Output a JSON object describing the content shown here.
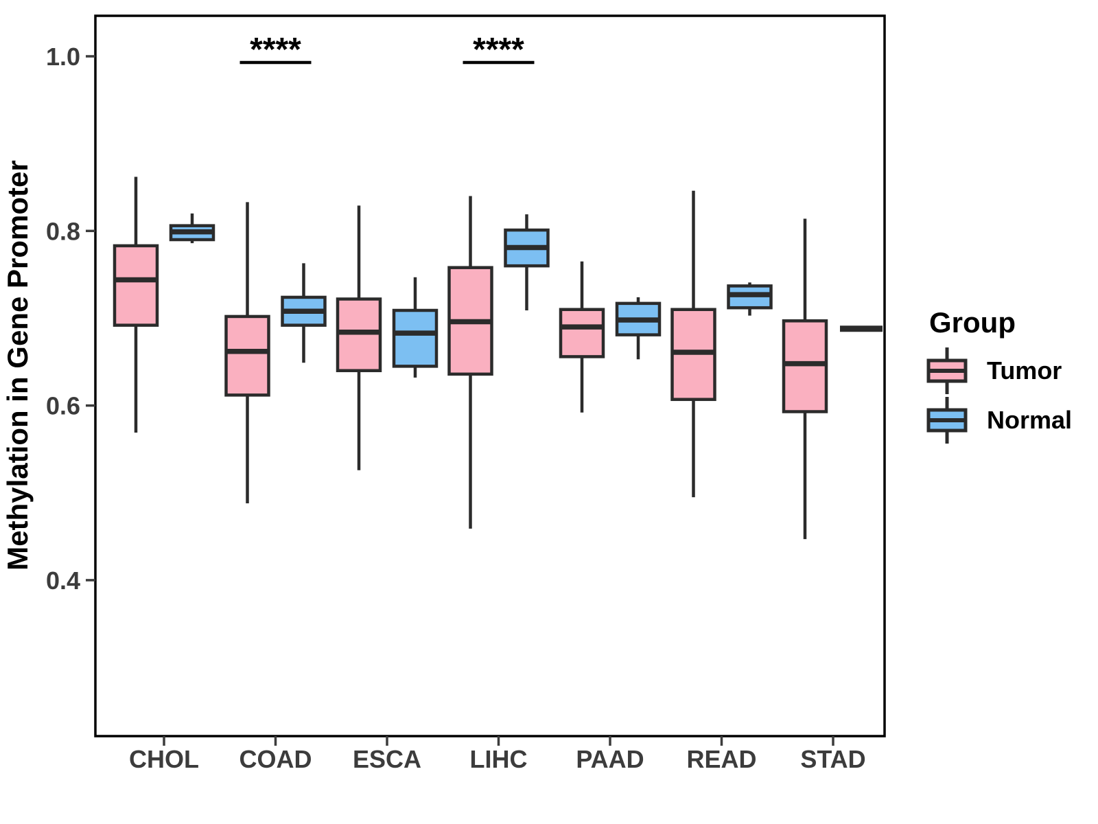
{
  "chart_data": {
    "type": "boxplot",
    "title": "",
    "xlabel": "",
    "ylabel": "Methylation in Gene Promoter",
    "legend_title": "Group",
    "legend_position": "right",
    "grid": false,
    "background": "#ffffff",
    "ylim": [
      0.24,
      1.05
    ],
    "y_ticks": [
      {
        "value": 1.0,
        "label": "1.0"
      },
      {
        "value": 0.8,
        "label": "0.8"
      },
      {
        "value": 0.6,
        "label": "0.6"
      },
      {
        "value": 0.4,
        "label": "0.4"
      }
    ],
    "categories": [
      "CHOL",
      "COAD",
      "ESCA",
      "LIHC",
      "PAAD",
      "READ",
      "STAD"
    ],
    "groups": [
      {
        "name": "Tumor",
        "color": "#FAB0C0"
      },
      {
        "name": "Normal",
        "color": "#7CBFF2"
      }
    ],
    "boxes": [
      {
        "category": "CHOL",
        "group": "Tumor",
        "whisker_low": 0.569,
        "q1": 0.692,
        "median": 0.744,
        "q3": 0.783,
        "whisker_high": 0.862
      },
      {
        "category": "CHOL",
        "group": "Normal",
        "whisker_low": 0.786,
        "q1": 0.79,
        "median": 0.799,
        "q3": 0.806,
        "whisker_high": 0.82
      },
      {
        "category": "COAD",
        "group": "Tumor",
        "whisker_low": 0.488,
        "q1": 0.612,
        "median": 0.662,
        "q3": 0.702,
        "whisker_high": 0.833
      },
      {
        "category": "COAD",
        "group": "Normal",
        "whisker_low": 0.649,
        "q1": 0.692,
        "median": 0.708,
        "q3": 0.724,
        "whisker_high": 0.763
      },
      {
        "category": "ESCA",
        "group": "Tumor",
        "whisker_low": 0.526,
        "q1": 0.64,
        "median": 0.684,
        "q3": 0.722,
        "whisker_high": 0.829
      },
      {
        "category": "ESCA",
        "group": "Normal",
        "whisker_low": 0.632,
        "q1": 0.645,
        "median": 0.683,
        "q3": 0.709,
        "whisker_high": 0.747
      },
      {
        "category": "LIHC",
        "group": "Tumor",
        "whisker_low": 0.459,
        "q1": 0.636,
        "median": 0.696,
        "q3": 0.758,
        "whisker_high": 0.84
      },
      {
        "category": "LIHC",
        "group": "Normal",
        "whisker_low": 0.709,
        "q1": 0.76,
        "median": 0.781,
        "q3": 0.801,
        "whisker_high": 0.819
      },
      {
        "category": "PAAD",
        "group": "Tumor",
        "whisker_low": 0.592,
        "q1": 0.656,
        "median": 0.69,
        "q3": 0.71,
        "whisker_high": 0.765
      },
      {
        "category": "PAAD",
        "group": "Normal",
        "whisker_low": 0.653,
        "q1": 0.681,
        "median": 0.698,
        "q3": 0.717,
        "whisker_high": 0.724
      },
      {
        "category": "READ",
        "group": "Tumor",
        "whisker_low": 0.495,
        "q1": 0.607,
        "median": 0.661,
        "q3": 0.71,
        "whisker_high": 0.846
      },
      {
        "category": "READ",
        "group": "Normal",
        "whisker_low": 0.703,
        "q1": 0.712,
        "median": 0.727,
        "q3": 0.737,
        "whisker_high": 0.741
      },
      {
        "category": "STAD",
        "group": "Tumor",
        "whisker_low": 0.447,
        "q1": 0.593,
        "median": 0.648,
        "q3": 0.697,
        "whisker_high": 0.814
      },
      {
        "category": "STAD",
        "group": "Normal",
        "whisker_low": 0.688,
        "q1": 0.688,
        "median": 0.688,
        "q3": 0.688,
        "whisker_high": 0.688
      }
    ],
    "significance": [
      {
        "category": "COAD",
        "label": "****"
      },
      {
        "category": "LIHC",
        "label": "****"
      }
    ],
    "styles": {
      "box_border_color": "#2B2B2B",
      "axis_line_color": "#000000",
      "tick_text_color": "#3C3C3C",
      "annotation_color": "#000000"
    }
  }
}
